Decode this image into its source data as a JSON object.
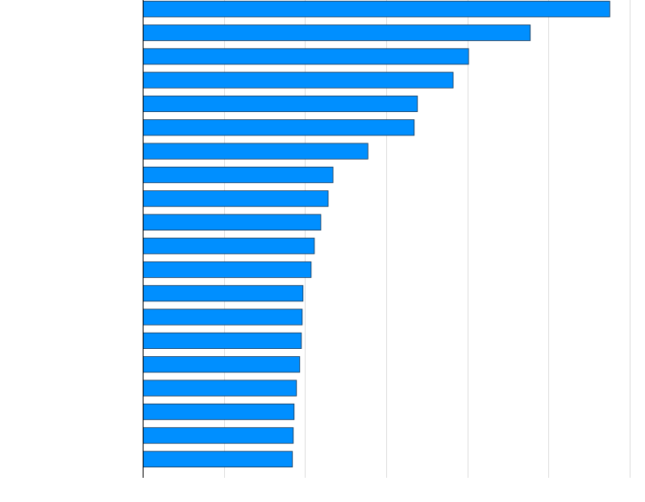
{
  "chart_data": {
    "type": "bar",
    "orientation": "horizontal",
    "title": "",
    "xlabel": "",
    "ylabel": "",
    "categories": [
      "",
      "",
      "",
      "",
      "",
      "",
      "",
      "",
      "",
      "",
      "",
      "",
      "",
      "",
      "",
      "",
      "",
      "",
      "",
      ""
    ],
    "values": [
      5.75,
      4.77,
      4.01,
      3.82,
      3.38,
      3.34,
      2.77,
      2.34,
      2.28,
      2.19,
      2.11,
      2.07,
      1.97,
      1.96,
      1.95,
      1.93,
      1.89,
      1.86,
      1.85,
      1.84
    ],
    "xlim": [
      0,
      6
    ],
    "x_ticks": [
      0,
      1,
      2,
      3,
      4,
      5,
      6
    ],
    "grid": "vertical",
    "bar_color": "#008fff",
    "bar_edge_color": "#1a3550",
    "grid_color": "#dddddd",
    "axis_color": "#000000"
  }
}
